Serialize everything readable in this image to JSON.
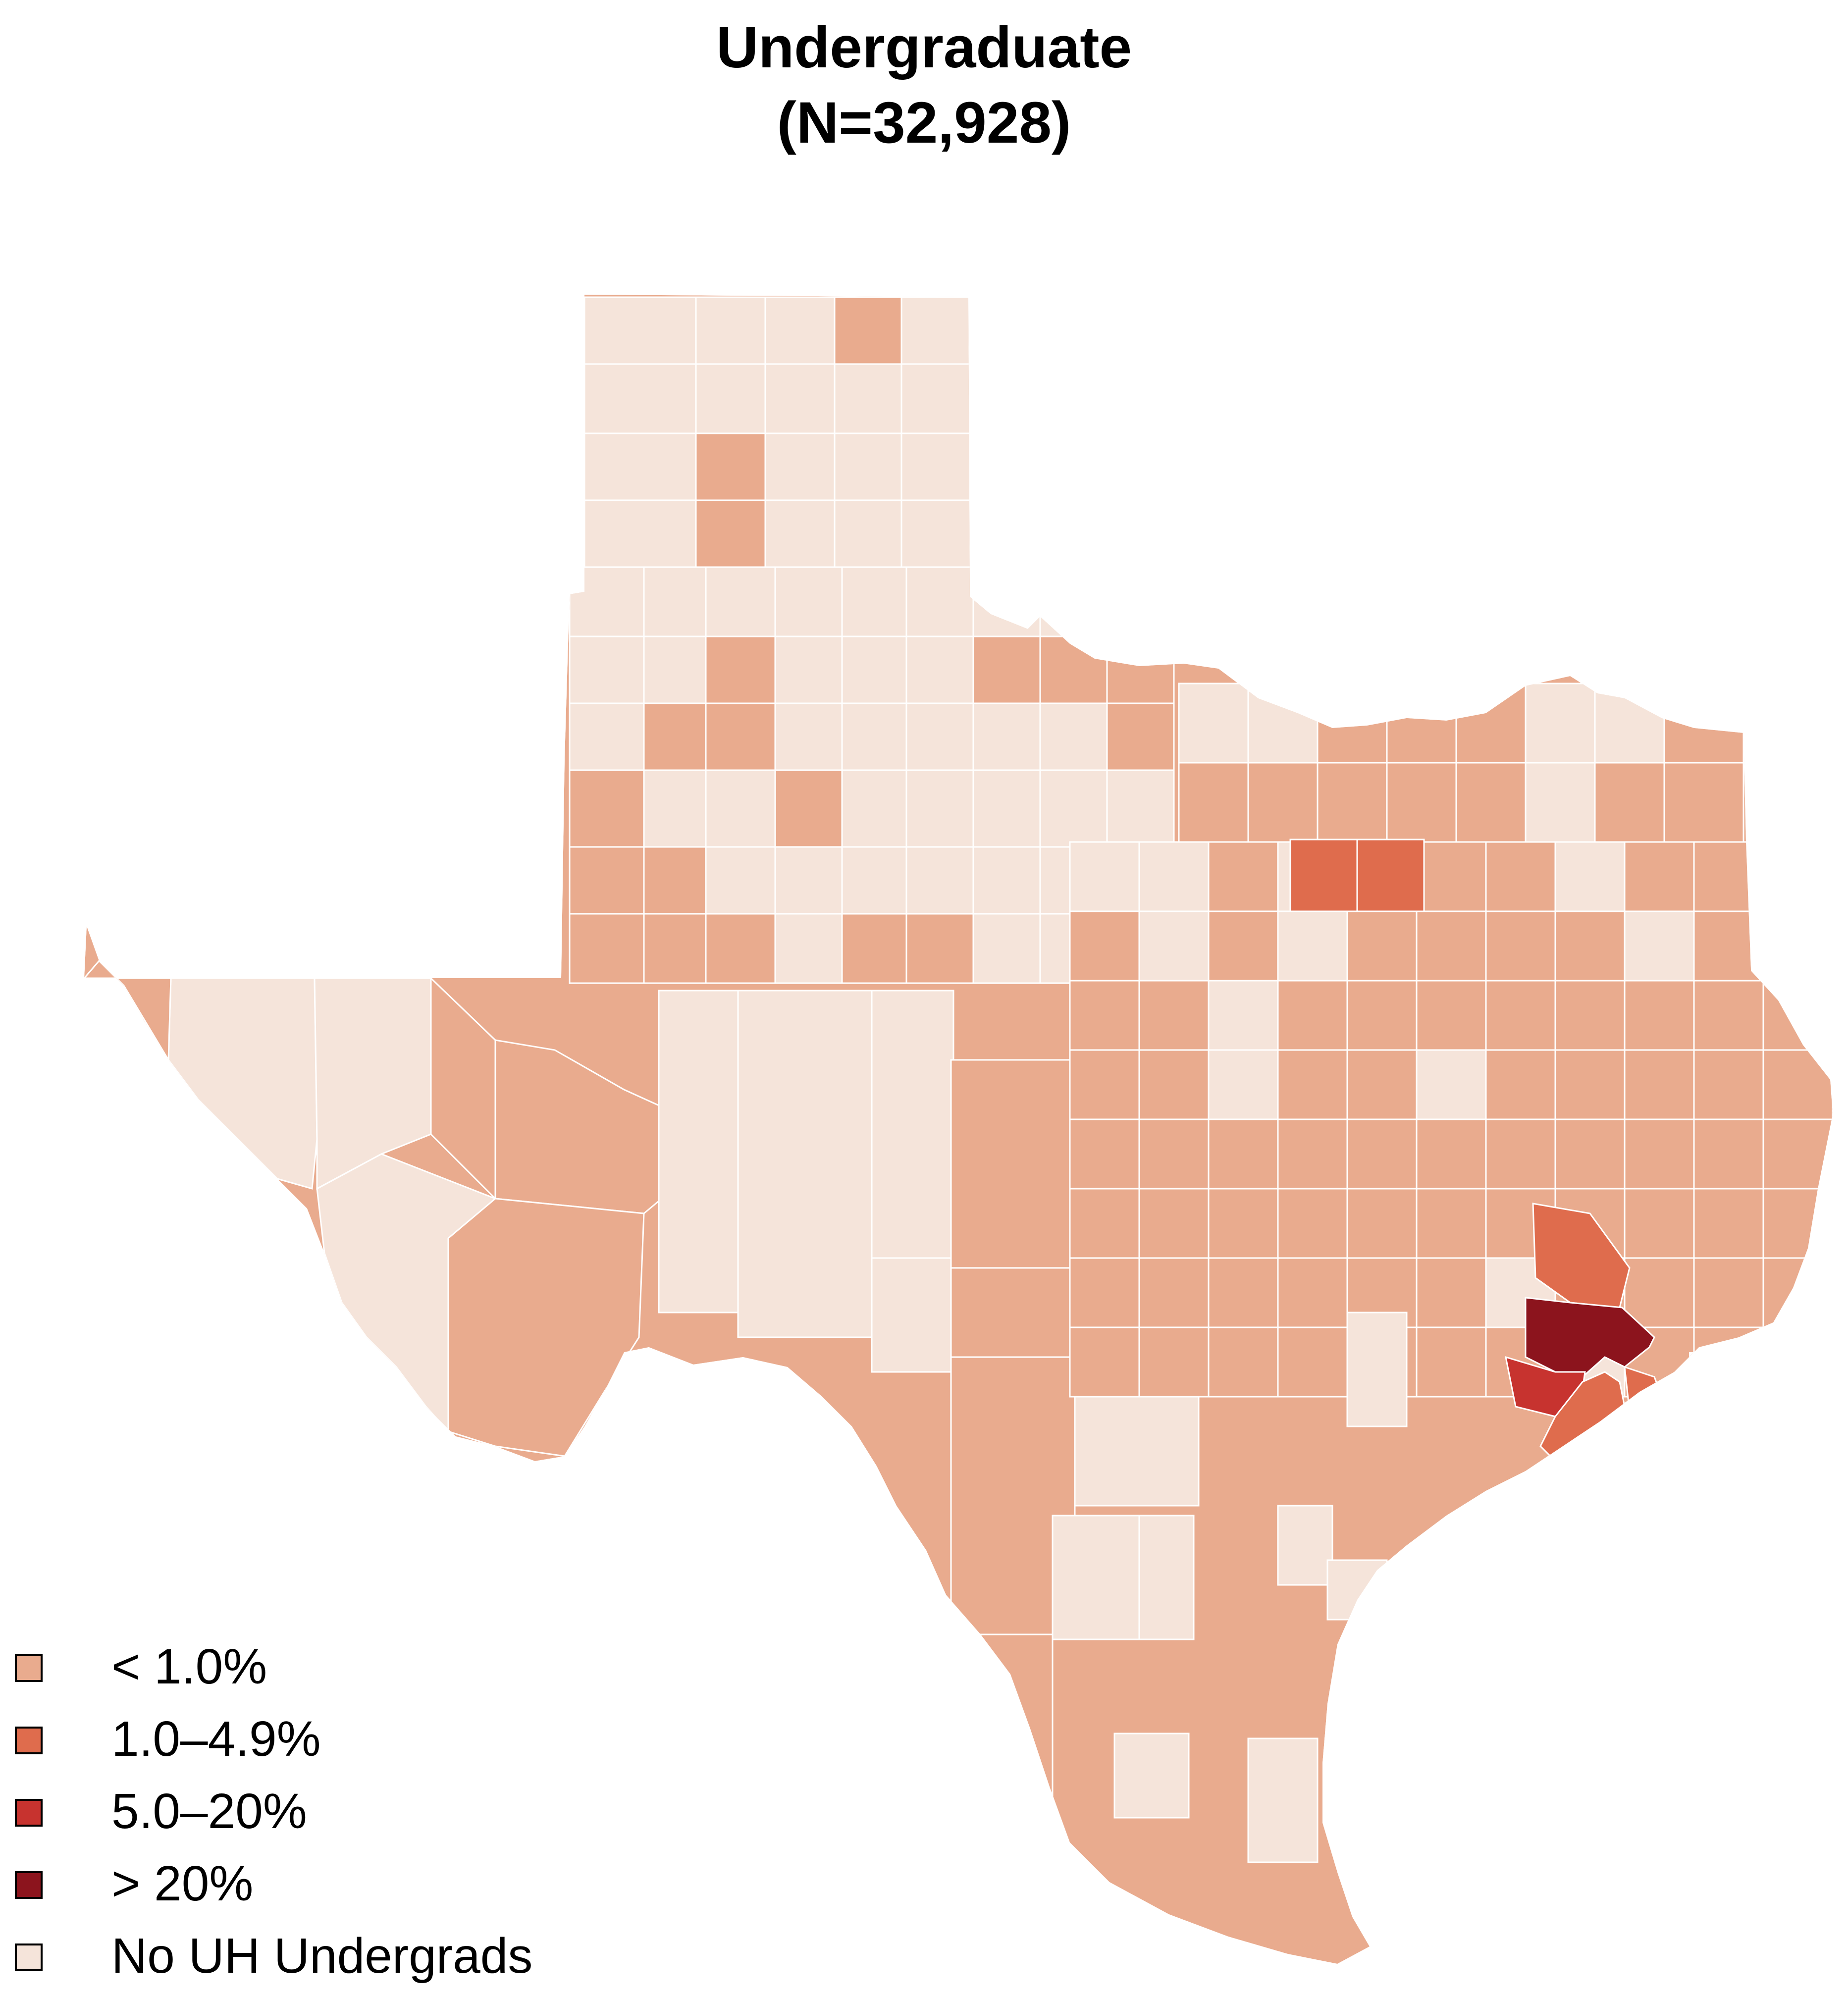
{
  "title": {
    "line1": "Undergraduate",
    "line2": "(N=32,928)"
  },
  "map": {
    "region": "Texas counties",
    "classes": [
      {
        "key": "lt1",
        "label": "< 1.0%",
        "color": "#e9ab8e"
      },
      {
        "key": "b1_49",
        "label": "1.0–4.9%",
        "color": "#df6c4d"
      },
      {
        "key": "b5_20",
        "label": "5.0–20%",
        "color": "#c7332f"
      },
      {
        "key": "gt20",
        "label": "> 20%",
        "color": "#8c141d"
      },
      {
        "key": "none",
        "label": "No UH Undergrads",
        "color": "#f5e4da"
      }
    ],
    "border_color": "#ffffff"
  },
  "legend": {
    "items": [
      {
        "label": "< 1.0%",
        "color": "#e9ab8e"
      },
      {
        "label": "1.0–4.9%",
        "color": "#df6c4d"
      },
      {
        "label": "5.0–20%",
        "color": "#c7332f"
      },
      {
        "label": "> 20%",
        "color": "#8c141d"
      },
      {
        "label": "No UH Undergrads",
        "color": "#f5e4da"
      }
    ]
  }
}
